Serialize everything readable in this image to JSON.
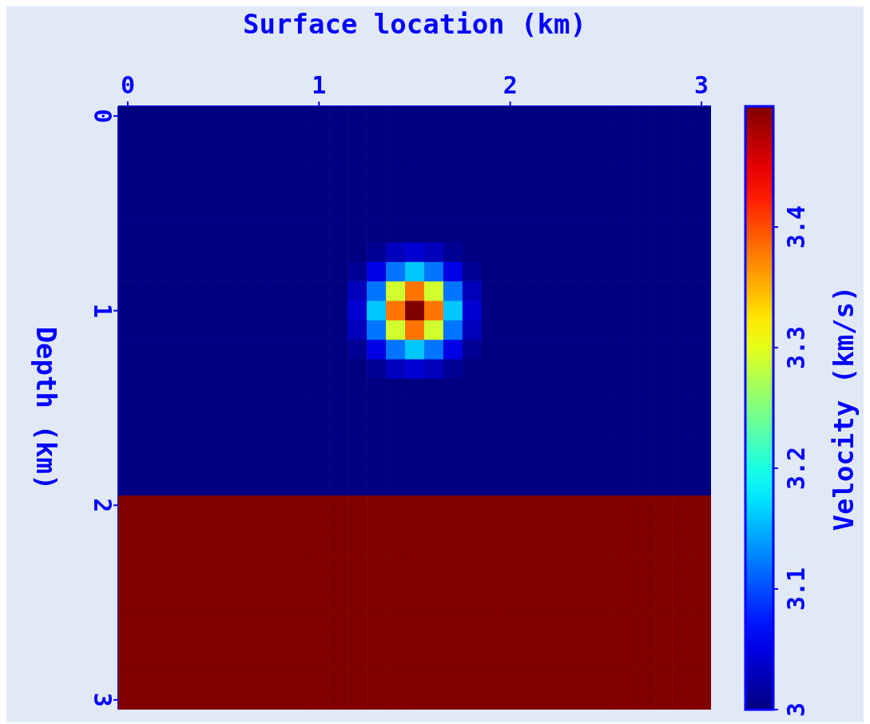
{
  "chart_data": {
    "type": "heatmap",
    "xlabel": "Surface location (km)",
    "ylabel": "Depth (km)",
    "clabel": "Velocity (km/s)",
    "clim": [
      3,
      3.5
    ],
    "cticks": [
      3,
      3.1,
      3.2,
      3.3,
      3.4
    ],
    "categories": [
      "0",
      null,
      null,
      null,
      null,
      null,
      null,
      null,
      null,
      null,
      "1",
      null,
      null,
      null,
      null,
      null,
      null,
      null,
      null,
      null,
      "2",
      null,
      null,
      null,
      null,
      null,
      null,
      null,
      null,
      null,
      "3"
    ],
    "y_categories": [
      "0",
      null,
      null,
      null,
      null,
      null,
      null,
      null,
      null,
      null,
      "1",
      null,
      null,
      null,
      null,
      null,
      null,
      null,
      null,
      null,
      "2",
      null,
      null,
      null,
      null,
      null,
      null,
      null,
      null,
      null,
      "3"
    ],
    "cells": [
      [
        3,
        3,
        3,
        3,
        3,
        3,
        3,
        3,
        3,
        3,
        3,
        3,
        3,
        3,
        3,
        3,
        3,
        3,
        3,
        3,
        3,
        3,
        3,
        3,
        3,
        3,
        3,
        3,
        3,
        3,
        3
      ],
      [
        3,
        3,
        3,
        3,
        3,
        3,
        3,
        3,
        3,
        3,
        3,
        3,
        3,
        3,
        3,
        3,
        3,
        3,
        3,
        3,
        3,
        3,
        3,
        3,
        3,
        3,
        3,
        3,
        3,
        3,
        3
      ],
      [
        3,
        3,
        3,
        3,
        3,
        3,
        3,
        3,
        3,
        3,
        3,
        3,
        3,
        3,
        3,
        3,
        3,
        3,
        3,
        3,
        3,
        3,
        3,
        3,
        3,
        3,
        3,
        3,
        3,
        3,
        3
      ],
      [
        3,
        3,
        3,
        3,
        3,
        3,
        3,
        3,
        3,
        3,
        3,
        3,
        3,
        3,
        3,
        3,
        3,
        3,
        3,
        3,
        3,
        3,
        3,
        3,
        3,
        3,
        3,
        3,
        3,
        3,
        3
      ],
      [
        3,
        3,
        3,
        3,
        3,
        3,
        3,
        3,
        3,
        3,
        3,
        3,
        3,
        3,
        3,
        3,
        3,
        3,
        3,
        3,
        3,
        3,
        3,
        3,
        3,
        3,
        3,
        3,
        3,
        3,
        3
      ],
      [
        3,
        3,
        3,
        3,
        3,
        3,
        3,
        3,
        3,
        3,
        3,
        3,
        3,
        3,
        3,
        3,
        3,
        3,
        3,
        3,
        3,
        3,
        3,
        3,
        3,
        3,
        3,
        3,
        3,
        3,
        3
      ],
      [
        3,
        3,
        3,
        3,
        3,
        3,
        3,
        3,
        3,
        3,
        3,
        3,
        3,
        3,
        3,
        3,
        3,
        3,
        3,
        3,
        3,
        3,
        3,
        3,
        3,
        3,
        3,
        3,
        3,
        3,
        3
      ],
      [
        3,
        3,
        3,
        3,
        3,
        3,
        3,
        3,
        3,
        3,
        3,
        3,
        3,
        3.01,
        3.03,
        3.04,
        3.03,
        3.01,
        3,
        3,
        3,
        3,
        3,
        3,
        3,
        3,
        3,
        3,
        3,
        3,
        3
      ],
      [
        3,
        3,
        3,
        3,
        3,
        3,
        3,
        3,
        3,
        3,
        3,
        3,
        3.01,
        3.05,
        3.12,
        3.16,
        3.12,
        3.05,
        3.01,
        3,
        3,
        3,
        3,
        3,
        3,
        3,
        3,
        3,
        3,
        3,
        3
      ],
      [
        3,
        3,
        3,
        3,
        3,
        3,
        3,
        3,
        3,
        3,
        3,
        3,
        3.03,
        3.12,
        3.29,
        3.38,
        3.29,
        3.12,
        3.03,
        3,
        3,
        3,
        3,
        3,
        3,
        3,
        3,
        3,
        3,
        3,
        3
      ],
      [
        3,
        3,
        3,
        3,
        3,
        3,
        3,
        3,
        3,
        3,
        3,
        3,
        3.04,
        3.16,
        3.38,
        3.5,
        3.38,
        3.16,
        3.04,
        3,
        3,
        3,
        3,
        3,
        3,
        3,
        3,
        3,
        3,
        3,
        3
      ],
      [
        3,
        3,
        3,
        3,
        3,
        3,
        3,
        3,
        3,
        3,
        3,
        3,
        3.03,
        3.12,
        3.29,
        3.38,
        3.29,
        3.12,
        3.03,
        3,
        3,
        3,
        3,
        3,
        3,
        3,
        3,
        3,
        3,
        3,
        3
      ],
      [
        3,
        3,
        3,
        3,
        3,
        3,
        3,
        3,
        3,
        3,
        3,
        3,
        3.01,
        3.05,
        3.12,
        3.16,
        3.12,
        3.05,
        3.01,
        3,
        3,
        3,
        3,
        3,
        3,
        3,
        3,
        3,
        3,
        3,
        3
      ],
      [
        3,
        3,
        3,
        3,
        3,
        3,
        3,
        3,
        3,
        3,
        3,
        3,
        3,
        3.01,
        3.03,
        3.04,
        3.03,
        3.01,
        3,
        3,
        3,
        3,
        3,
        3,
        3,
        3,
        3,
        3,
        3,
        3,
        3
      ],
      [
        3,
        3,
        3,
        3,
        3,
        3,
        3,
        3,
        3,
        3,
        3,
        3,
        3,
        3,
        3,
        3,
        3,
        3,
        3,
        3,
        3,
        3,
        3,
        3,
        3,
        3,
        3,
        3,
        3,
        3,
        3
      ],
      [
        3,
        3,
        3,
        3,
        3,
        3,
        3,
        3,
        3,
        3,
        3,
        3,
        3,
        3,
        3,
        3,
        3,
        3,
        3,
        3,
        3,
        3,
        3,
        3,
        3,
        3,
        3,
        3,
        3,
        3,
        3
      ],
      [
        3,
        3,
        3,
        3,
        3,
        3,
        3,
        3,
        3,
        3,
        3,
        3,
        3,
        3,
        3,
        3,
        3,
        3,
        3,
        3,
        3,
        3,
        3,
        3,
        3,
        3,
        3,
        3,
        3,
        3,
        3
      ],
      [
        3,
        3,
        3,
        3,
        3,
        3,
        3,
        3,
        3,
        3,
        3,
        3,
        3,
        3,
        3,
        3,
        3,
        3,
        3,
        3,
        3,
        3,
        3,
        3,
        3,
        3,
        3,
        3,
        3,
        3,
        3
      ],
      [
        3,
        3,
        3,
        3,
        3,
        3,
        3,
        3,
        3,
        3,
        3,
        3,
        3,
        3,
        3,
        3,
        3,
        3,
        3,
        3,
        3,
        3,
        3,
        3,
        3,
        3,
        3,
        3,
        3,
        3,
        3
      ],
      [
        3,
        3,
        3,
        3,
        3,
        3,
        3,
        3,
        3,
        3,
        3,
        3,
        3,
        3,
        3,
        3,
        3,
        3,
        3,
        3,
        3,
        3,
        3,
        3,
        3,
        3,
        3,
        3,
        3,
        3,
        3
      ],
      [
        3.5,
        3.5,
        3.5,
        3.5,
        3.5,
        3.5,
        3.5,
        3.5,
        3.5,
        3.5,
        3.5,
        3.5,
        3.5,
        3.5,
        3.5,
        3.5,
        3.5,
        3.5,
        3.5,
        3.5,
        3.5,
        3.5,
        3.5,
        3.5,
        3.5,
        3.5,
        3.5,
        3.5,
        3.5,
        3.5,
        3.5
      ],
      [
        3.5,
        3.5,
        3.5,
        3.5,
        3.5,
        3.5,
        3.5,
        3.5,
        3.5,
        3.5,
        3.5,
        3.5,
        3.5,
        3.5,
        3.5,
        3.5,
        3.5,
        3.5,
        3.5,
        3.5,
        3.5,
        3.5,
        3.5,
        3.5,
        3.5,
        3.5,
        3.5,
        3.5,
        3.5,
        3.5,
        3.5
      ],
      [
        3.5,
        3.5,
        3.5,
        3.5,
        3.5,
        3.5,
        3.5,
        3.5,
        3.5,
        3.5,
        3.5,
        3.5,
        3.5,
        3.5,
        3.5,
        3.5,
        3.5,
        3.5,
        3.5,
        3.5,
        3.5,
        3.5,
        3.5,
        3.5,
        3.5,
        3.5,
        3.5,
        3.5,
        3.5,
        3.5,
        3.5
      ],
      [
        3.5,
        3.5,
        3.5,
        3.5,
        3.5,
        3.5,
        3.5,
        3.5,
        3.5,
        3.5,
        3.5,
        3.5,
        3.5,
        3.5,
        3.5,
        3.5,
        3.5,
        3.5,
        3.5,
        3.5,
        3.5,
        3.5,
        3.5,
        3.5,
        3.5,
        3.5,
        3.5,
        3.5,
        3.5,
        3.5,
        3.5
      ],
      [
        3.5,
        3.5,
        3.5,
        3.5,
        3.5,
        3.5,
        3.5,
        3.5,
        3.5,
        3.5,
        3.5,
        3.5,
        3.5,
        3.5,
        3.5,
        3.5,
        3.5,
        3.5,
        3.5,
        3.5,
        3.5,
        3.5,
        3.5,
        3.5,
        3.5,
        3.5,
        3.5,
        3.5,
        3.5,
        3.5,
        3.5
      ],
      [
        3.5,
        3.5,
        3.5,
        3.5,
        3.5,
        3.5,
        3.5,
        3.5,
        3.5,
        3.5,
        3.5,
        3.5,
        3.5,
        3.5,
        3.5,
        3.5,
        3.5,
        3.5,
        3.5,
        3.5,
        3.5,
        3.5,
        3.5,
        3.5,
        3.5,
        3.5,
        3.5,
        3.5,
        3.5,
        3.5,
        3.5
      ],
      [
        3.5,
        3.5,
        3.5,
        3.5,
        3.5,
        3.5,
        3.5,
        3.5,
        3.5,
        3.5,
        3.5,
        3.5,
        3.5,
        3.5,
        3.5,
        3.5,
        3.5,
        3.5,
        3.5,
        3.5,
        3.5,
        3.5,
        3.5,
        3.5,
        3.5,
        3.5,
        3.5,
        3.5,
        3.5,
        3.5,
        3.5
      ],
      [
        3.5,
        3.5,
        3.5,
        3.5,
        3.5,
        3.5,
        3.5,
        3.5,
        3.5,
        3.5,
        3.5,
        3.5,
        3.5,
        3.5,
        3.5,
        3.5,
        3.5,
        3.5,
        3.5,
        3.5,
        3.5,
        3.5,
        3.5,
        3.5,
        3.5,
        3.5,
        3.5,
        3.5,
        3.5,
        3.5,
        3.5
      ],
      [
        3.5,
        3.5,
        3.5,
        3.5,
        3.5,
        3.5,
        3.5,
        3.5,
        3.5,
        3.5,
        3.5,
        3.5,
        3.5,
        3.5,
        3.5,
        3.5,
        3.5,
        3.5,
        3.5,
        3.5,
        3.5,
        3.5,
        3.5,
        3.5,
        3.5,
        3.5,
        3.5,
        3.5,
        3.5,
        3.5,
        3.5
      ],
      [
        3.5,
        3.5,
        3.5,
        3.5,
        3.5,
        3.5,
        3.5,
        3.5,
        3.5,
        3.5,
        3.5,
        3.5,
        3.5,
        3.5,
        3.5,
        3.5,
        3.5,
        3.5,
        3.5,
        3.5,
        3.5,
        3.5,
        3.5,
        3.5,
        3.5,
        3.5,
        3.5,
        3.5,
        3.5,
        3.5,
        3.5
      ],
      [
        3.5,
        3.5,
        3.5,
        3.5,
        3.5,
        3.5,
        3.5,
        3.5,
        3.5,
        3.5,
        3.5,
        3.5,
        3.5,
        3.5,
        3.5,
        3.5,
        3.5,
        3.5,
        3.5,
        3.5,
        3.5,
        3.5,
        3.5,
        3.5,
        3.5,
        3.5,
        3.5,
        3.5,
        3.5,
        3.5,
        3.5
      ]
    ]
  }
}
